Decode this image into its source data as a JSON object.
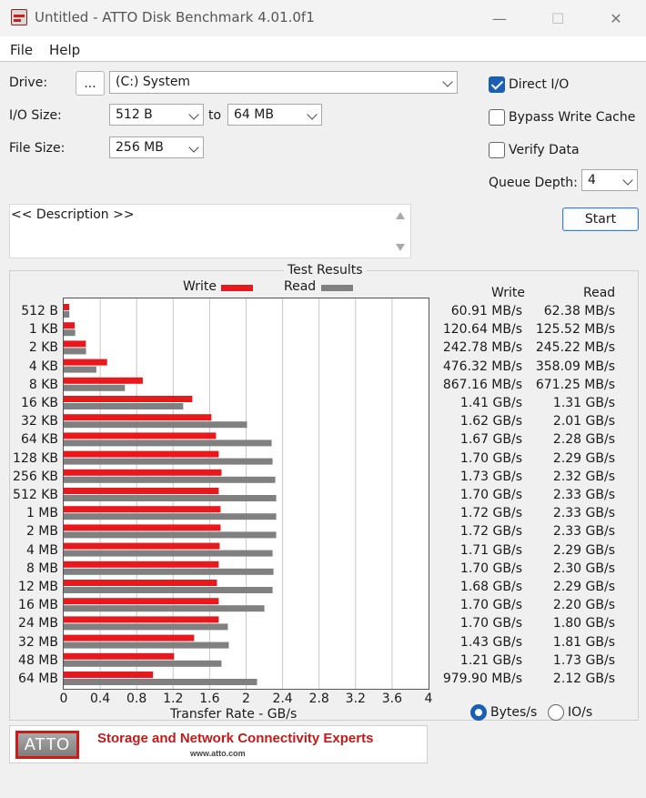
{
  "window": {
    "title": "Untitled - ATTO Disk Benchmark 4.01.0f1",
    "minimize": "—",
    "maximize": "☐",
    "close": "✕"
  },
  "menu": {
    "file": "File",
    "help": "Help"
  },
  "controls": {
    "drive_label": "Drive:",
    "browse_label": "...",
    "drive_value": "(C:) System",
    "io_size_label": "I/O Size:",
    "io_from": "512 B",
    "to_label": "to",
    "io_to": "64 MB",
    "file_size_label": "File Size:",
    "file_size": "256 MB",
    "direct_io_label": "Direct I/O",
    "direct_io_checked": true,
    "bypass_label": "Bypass Write Cache",
    "bypass_checked": false,
    "verify_label": "Verify Data",
    "verify_checked": false,
    "queue_depth_label": "Queue Depth:",
    "queue_depth": "4",
    "start_label": "Start",
    "description": "<< Description >>"
  },
  "results": {
    "title": "Test Results",
    "write_label": "Write",
    "read_label": "Read",
    "xlabel": "Transfer Rate - GB/s",
    "bytes_label": "Bytes/s",
    "ios_label": "IO/s",
    "bytes_selected": true
  },
  "colors": {
    "write": "#e8181d",
    "read": "#808080",
    "accent": "#1a5fb4"
  },
  "chart_data": {
    "type": "bar",
    "orientation": "horizontal",
    "title": "Test Results",
    "xlabel": "Transfer Rate - GB/s",
    "xlim": [
      0,
      4
    ],
    "xticks": [
      "0",
      "0.4",
      "0.8",
      "1.2",
      "1.6",
      "2",
      "2.4",
      "2.8",
      "3.2",
      "3.6",
      "4"
    ],
    "grid": true,
    "legend": "top",
    "categories": [
      "512 B",
      "1 KB",
      "2 KB",
      "4 KB",
      "8 KB",
      "16 KB",
      "32 KB",
      "64 KB",
      "128 KB",
      "256 KB",
      "512 KB",
      "1 MB",
      "2 MB",
      "4 MB",
      "8 MB",
      "12 MB",
      "16 MB",
      "24 MB",
      "32 MB",
      "48 MB",
      "64 MB"
    ],
    "series": [
      {
        "name": "Write",
        "values": [
          0.061,
          0.121,
          0.243,
          0.476,
          0.867,
          1.41,
          1.62,
          1.67,
          1.7,
          1.73,
          1.7,
          1.72,
          1.72,
          1.71,
          1.7,
          1.68,
          1.7,
          1.7,
          1.43,
          1.21,
          0.98
        ]
      },
      {
        "name": "Read",
        "values": [
          0.062,
          0.126,
          0.245,
          0.358,
          0.671,
          1.31,
          2.01,
          2.28,
          2.29,
          2.32,
          2.33,
          2.33,
          2.33,
          2.29,
          2.3,
          2.29,
          2.2,
          1.8,
          1.81,
          1.73,
          2.12
        ]
      }
    ],
    "write_text": [
      "60.91 MB/s",
      "120.64 MB/s",
      "242.78 MB/s",
      "476.32 MB/s",
      "867.16 MB/s",
      "1.41 GB/s",
      "1.62 GB/s",
      "1.67 GB/s",
      "1.70 GB/s",
      "1.73 GB/s",
      "1.70 GB/s",
      "1.72 GB/s",
      "1.72 GB/s",
      "1.71 GB/s",
      "1.70 GB/s",
      "1.68 GB/s",
      "1.70 GB/s",
      "1.70 GB/s",
      "1.43 GB/s",
      "1.21 GB/s",
      "979.90 MB/s"
    ],
    "read_text": [
      "62.38 MB/s",
      "125.52 MB/s",
      "245.22 MB/s",
      "358.09 MB/s",
      "671.25 MB/s",
      "1.31 GB/s",
      "2.01 GB/s",
      "2.28 GB/s",
      "2.29 GB/s",
      "2.32 GB/s",
      "2.33 GB/s",
      "2.33 GB/s",
      "2.33 GB/s",
      "2.29 GB/s",
      "2.30 GB/s",
      "2.29 GB/s",
      "2.20 GB/s",
      "1.80 GB/s",
      "1.81 GB/s",
      "1.73 GB/s",
      "2.12 GB/s"
    ]
  },
  "banner": {
    "logo": "ATTO",
    "tagline": "Storage and Network Connectivity Experts",
    "url": "www.atto.com"
  }
}
